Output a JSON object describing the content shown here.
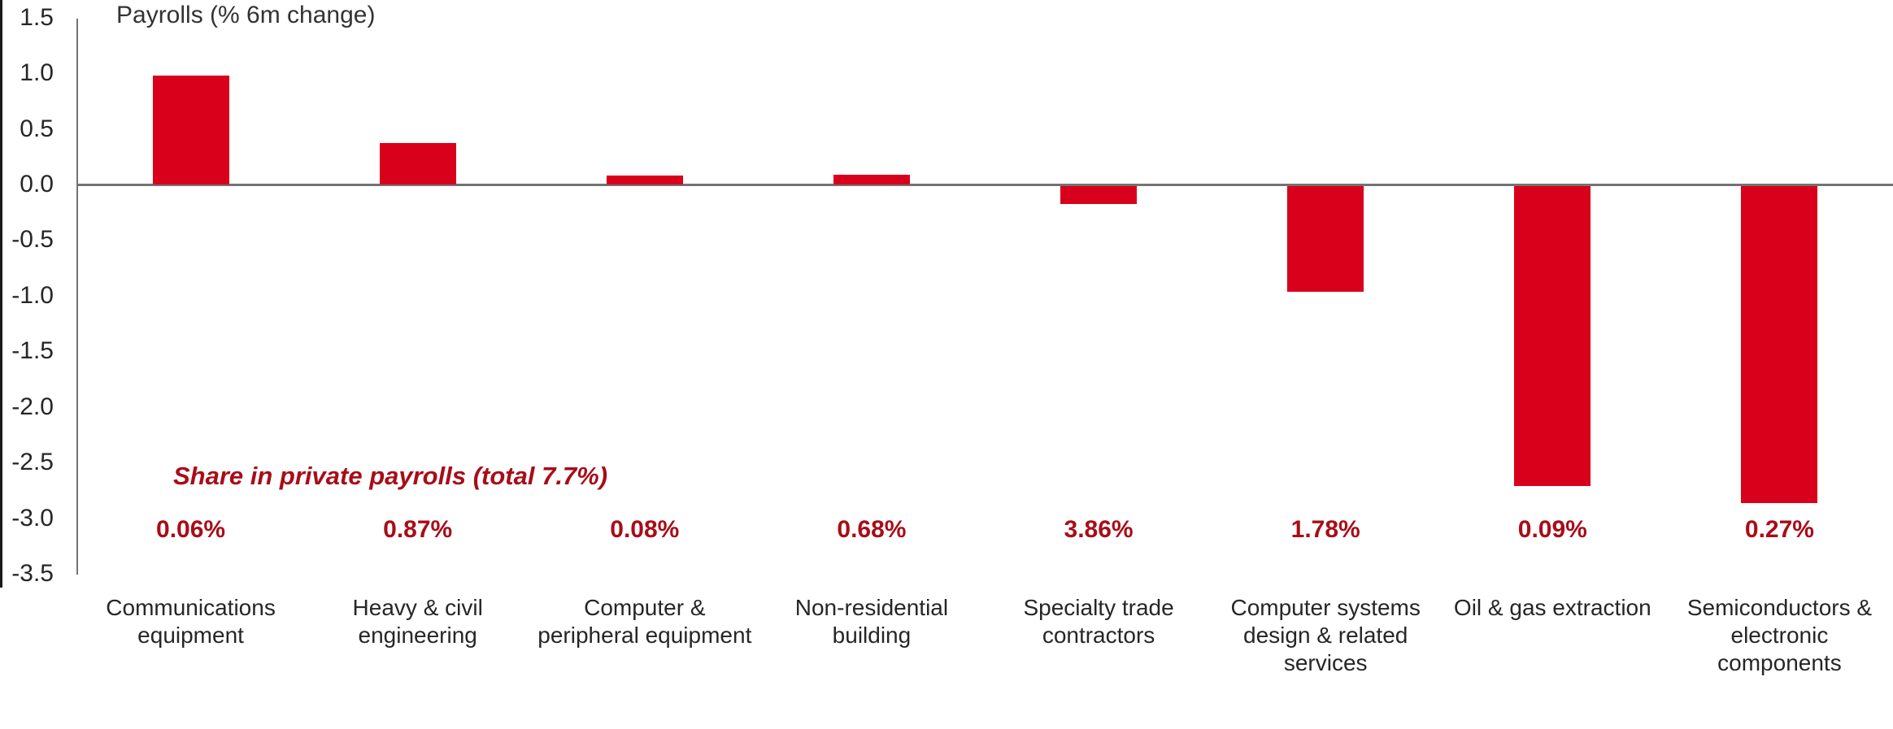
{
  "chart_data": {
    "type": "bar",
    "title": "Payrolls (% 6m change)",
    "annotation": "Share in private payrolls (total 7.7%)",
    "categories": [
      "Communications equipment",
      "Heavy & civil engineering",
      "Computer & peripheral equipment",
      "Non-residential building",
      "Specialty trade contractors",
      "Computer systems design & related services",
      "Oil & gas extraction",
      "Semiconductors & electronic components"
    ],
    "values": [
      0.98,
      0.37,
      0.08,
      0.09,
      -0.16,
      -0.95,
      -2.7,
      -2.85
    ],
    "shares": [
      "0.06%",
      "0.87%",
      "0.08%",
      "0.68%",
      "3.86%",
      "1.78%",
      "0.09%",
      "0.27%"
    ],
    "ylabel": "",
    "xlabel": "",
    "ylim": [
      -3.5,
      1.5
    ],
    "ytick_step": 0.5,
    "yticks": [
      "1.5",
      "1.0",
      "0.5",
      "0.0",
      "-0.5",
      "-1.0",
      "-1.5",
      "-2.0",
      "-2.5",
      "-3.0",
      "-3.5"
    ],
    "grid": "off",
    "legend": "none",
    "bar_color": "#d9001b",
    "accent_text_color": "#a80d18",
    "axis_color": "#737373"
  }
}
